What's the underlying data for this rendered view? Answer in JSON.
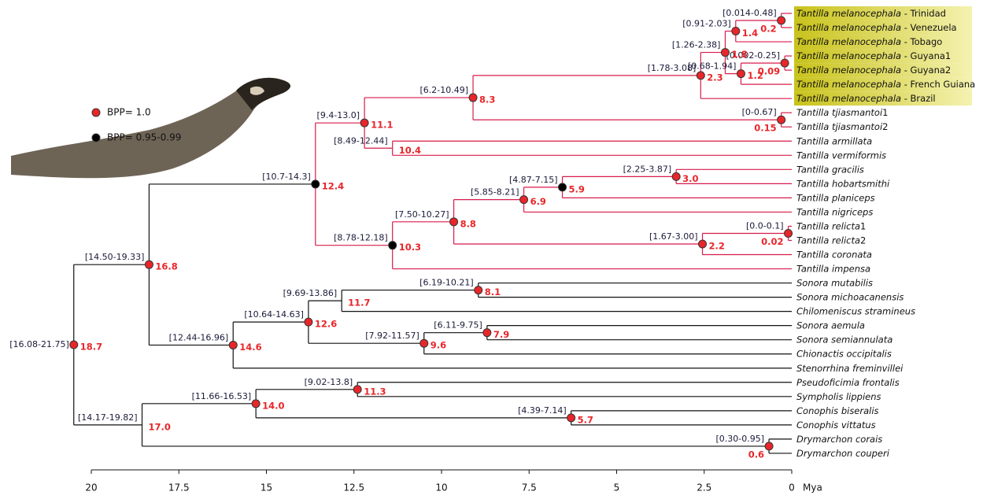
{
  "legend": [
    {
      "label": "BPP= 1.0",
      "color": "#e8262a"
    },
    {
      "label": "BPP= 0.95-0.99",
      "color": "#000000"
    }
  ],
  "axis": {
    "lim": [
      20,
      0
    ],
    "ticks": [
      20,
      17.5,
      15,
      12.5,
      10,
      7.5,
      5,
      2.5,
      0
    ],
    "unit": "Mya"
  },
  "leaves": [
    {
      "name": "Tantilla melanocephala",
      "suffix": " - Trinidad",
      "highlight": true
    },
    {
      "name": "Tantilla melanocephala",
      "suffix": " - Venezuela",
      "highlight": true
    },
    {
      "name": "Tantilla melanocephala",
      "suffix": " - Tobago",
      "highlight": true
    },
    {
      "name": "Tantilla melanocephala",
      "suffix": " - Guyana1",
      "highlight": true
    },
    {
      "name": "Tantilla melanocephala",
      "suffix": " - Guyana2",
      "highlight": true
    },
    {
      "name": "Tantilla melanocephala",
      "suffix": " - French Guiana",
      "highlight": true
    },
    {
      "name": "Tantilla melanocephala",
      "suffix": " - Brazil",
      "highlight": true
    },
    {
      "name": "Tantilla tjiasmantoi",
      "suffix": "1"
    },
    {
      "name": "Tantilla tjiasmantoi",
      "suffix": "2"
    },
    {
      "name": "Tantilla armillata"
    },
    {
      "name": "Tantilla vermiformis"
    },
    {
      "name": "Tantilla gracilis"
    },
    {
      "name": "Tantilla hobartsmithi"
    },
    {
      "name": "Tantilla planiceps"
    },
    {
      "name": "Tantilla nigriceps"
    },
    {
      "name": "Tantilla relicta",
      "suffix": "1"
    },
    {
      "name": "Tantilla relicta",
      "suffix": "2"
    },
    {
      "name": "Tantilla coronata"
    },
    {
      "name": "Tantilla impensa"
    },
    {
      "name": "Sonora mutabilis"
    },
    {
      "name": "Sonora michoacanensis"
    },
    {
      "name": "Chilomeniscus stramineus"
    },
    {
      "name": "Sonora aemula"
    },
    {
      "name": "Sonora semiannulata"
    },
    {
      "name": "Chionactis occipitalis"
    },
    {
      "name": "Stenorrhina freminvillei"
    },
    {
      "name": "Pseudoficimia frontalis"
    },
    {
      "name": "Sympholis lippiens"
    },
    {
      "name": "Conophis biseralis"
    },
    {
      "name": "Conophis vittatus"
    },
    {
      "name": "Drymarchon corais"
    },
    {
      "name": "Drymarchon couperi"
    }
  ],
  "nodes": [
    {
      "age": 0.3,
      "label": "0.2",
      "interval": "[0.014-0.48]",
      "color": "#e8262a",
      "children": [
        "L0",
        "L1"
      ]
    },
    {
      "age": 1.6,
      "label": "1.4",
      "interval": "[0.91-2.03]",
      "color": "#e8262a",
      "children": [
        "N0",
        "L2"
      ]
    },
    {
      "age": 0.2,
      "label": "0.09",
      "interval": "[0.002-0.25]",
      "color": "#e8262a",
      "children": [
        "L3",
        "L4"
      ]
    },
    {
      "age": 1.45,
      "label": "1.2",
      "interval": "[0.68-1.94]",
      "color": "#e8262a",
      "children": [
        "N2",
        "L5"
      ]
    },
    {
      "age": 1.9,
      "label": "1.8",
      "interval": "[1.26-2.38]",
      "color": "#e8262a",
      "children": [
        "N1",
        "N3"
      ]
    },
    {
      "age": 2.6,
      "label": "2.3",
      "interval": "[1.78-3.08]",
      "color": "#e8262a",
      "children": [
        "N4",
        "L6"
      ]
    },
    {
      "age": 0.3,
      "label": "0.15",
      "interval": "[0-0.67]",
      "color": "#e8262a",
      "children": [
        "L7",
        "L8"
      ]
    },
    {
      "age": 9.1,
      "label": "8.3",
      "interval": "[6.2-10.49]",
      "color": "#e8262a",
      "children": [
        "N5",
        "N6"
      ]
    },
    {
      "age": 12.2,
      "label": "11.1",
      "interval": "[9.4-13.0]",
      "color": "#e8262a",
      "children": [
        "N7",
        "N9"
      ]
    },
    {
      "age": 11.4,
      "label": "10.4",
      "interval": "[8.49-12.44]",
      "children": [
        "L9",
        "L10"
      ]
    },
    {
      "age": 3.3,
      "label": "3.0",
      "interval": "[2.25-3.87]",
      "color": "#e8262a",
      "children": [
        "L11",
        "L12"
      ]
    },
    {
      "age": 6.55,
      "label": "5.9",
      "interval": "[4.87-7.15]",
      "color": "#000000",
      "children": [
        "N10",
        "L13"
      ]
    },
    {
      "age": 7.65,
      "label": "6.9",
      "interval": "[5.85-8.21]",
      "color": "#e8262a",
      "children": [
        "N11",
        "L14"
      ]
    },
    {
      "age": 0.1,
      "label": "0.02",
      "interval": "[0.0-0.1]",
      "color": "#e8262a",
      "children": [
        "L15",
        "L16"
      ]
    },
    {
      "age": 2.55,
      "label": "2.2",
      "interval": "[1.67-3.00]",
      "color": "#e8262a",
      "children": [
        "N13",
        "L17"
      ]
    },
    {
      "age": 9.65,
      "label": "8.8",
      "interval": "[7.50-10.27]",
      "color": "#e8262a",
      "children": [
        "N12",
        "N14"
      ]
    },
    {
      "age": 11.4,
      "label": "10.3",
      "interval": "[8.78-12.18]",
      "color": "#000000",
      "children": [
        "N15",
        "L18"
      ]
    },
    {
      "age": 13.6,
      "label": "12.4",
      "interval": "[10.7-14.3]",
      "color": "#000000",
      "branch_color": "#d81b4a",
      "children": [
        "N8",
        "N16"
      ]
    },
    {
      "age": 8.95,
      "label": "8.1",
      "interval": "[6.19-10.21]",
      "color": "#e8262a",
      "children": [
        "L19",
        "L20"
      ]
    },
    {
      "age": 12.85,
      "label": "11.7",
      "interval": "[9.69-13.86]",
      "children": [
        "N18",
        "L21"
      ]
    },
    {
      "age": 8.7,
      "label": "7.9",
      "interval": "[6.11-9.75]",
      "color": "#e8262a",
      "children": [
        "L22",
        "L23"
      ]
    },
    {
      "age": 10.5,
      "label": "9.6",
      "interval": "[7.92-11.57]",
      "color": "#e8262a",
      "children": [
        "N20",
        "L24"
      ]
    },
    {
      "age": 13.8,
      "label": "12.6",
      "interval": "[10.64-14.63]",
      "color": "#e8262a",
      "children": [
        "N19",
        "N21"
      ]
    },
    {
      "age": 15.95,
      "label": "14.6",
      "interval": "[12.44-16.96]",
      "color": "#e8262a",
      "children": [
        "N22",
        "L25"
      ]
    },
    {
      "age": 18.35,
      "label": "16.8",
      "interval": "[14.50-19.33]",
      "color": "#e8262a",
      "children": [
        "N17",
        "N23"
      ]
    },
    {
      "age": 12.4,
      "label": "11.3",
      "interval": "[9.02-13.8]",
      "color": "#e8262a",
      "children": [
        "L26",
        "L27"
      ]
    },
    {
      "age": 6.3,
      "label": "5.7",
      "interval": "[4.39-7.14]",
      "color": "#e8262a",
      "children": [
        "L28",
        "L29"
      ]
    },
    {
      "age": 15.3,
      "label": "14.0",
      "interval": "[11.66-16.53]",
      "color": "#e8262a",
      "children": [
        "N25",
        "N26"
      ]
    },
    {
      "age": 0.65,
      "label": "0.6",
      "interval": "[0.30-0.95]",
      "color": "#e8262a",
      "children": [
        "L30",
        "L31"
      ]
    },
    {
      "age": 18.55,
      "label": "17.0",
      "interval": "[14.17-19.82]",
      "children": [
        "N27",
        "N28"
      ]
    },
    {
      "age": 20.5,
      "label": "18.7",
      "interval": "[16.08-21.75]",
      "color": "#e8262a",
      "children": [
        "N24",
        "N29"
      ]
    }
  ]
}
